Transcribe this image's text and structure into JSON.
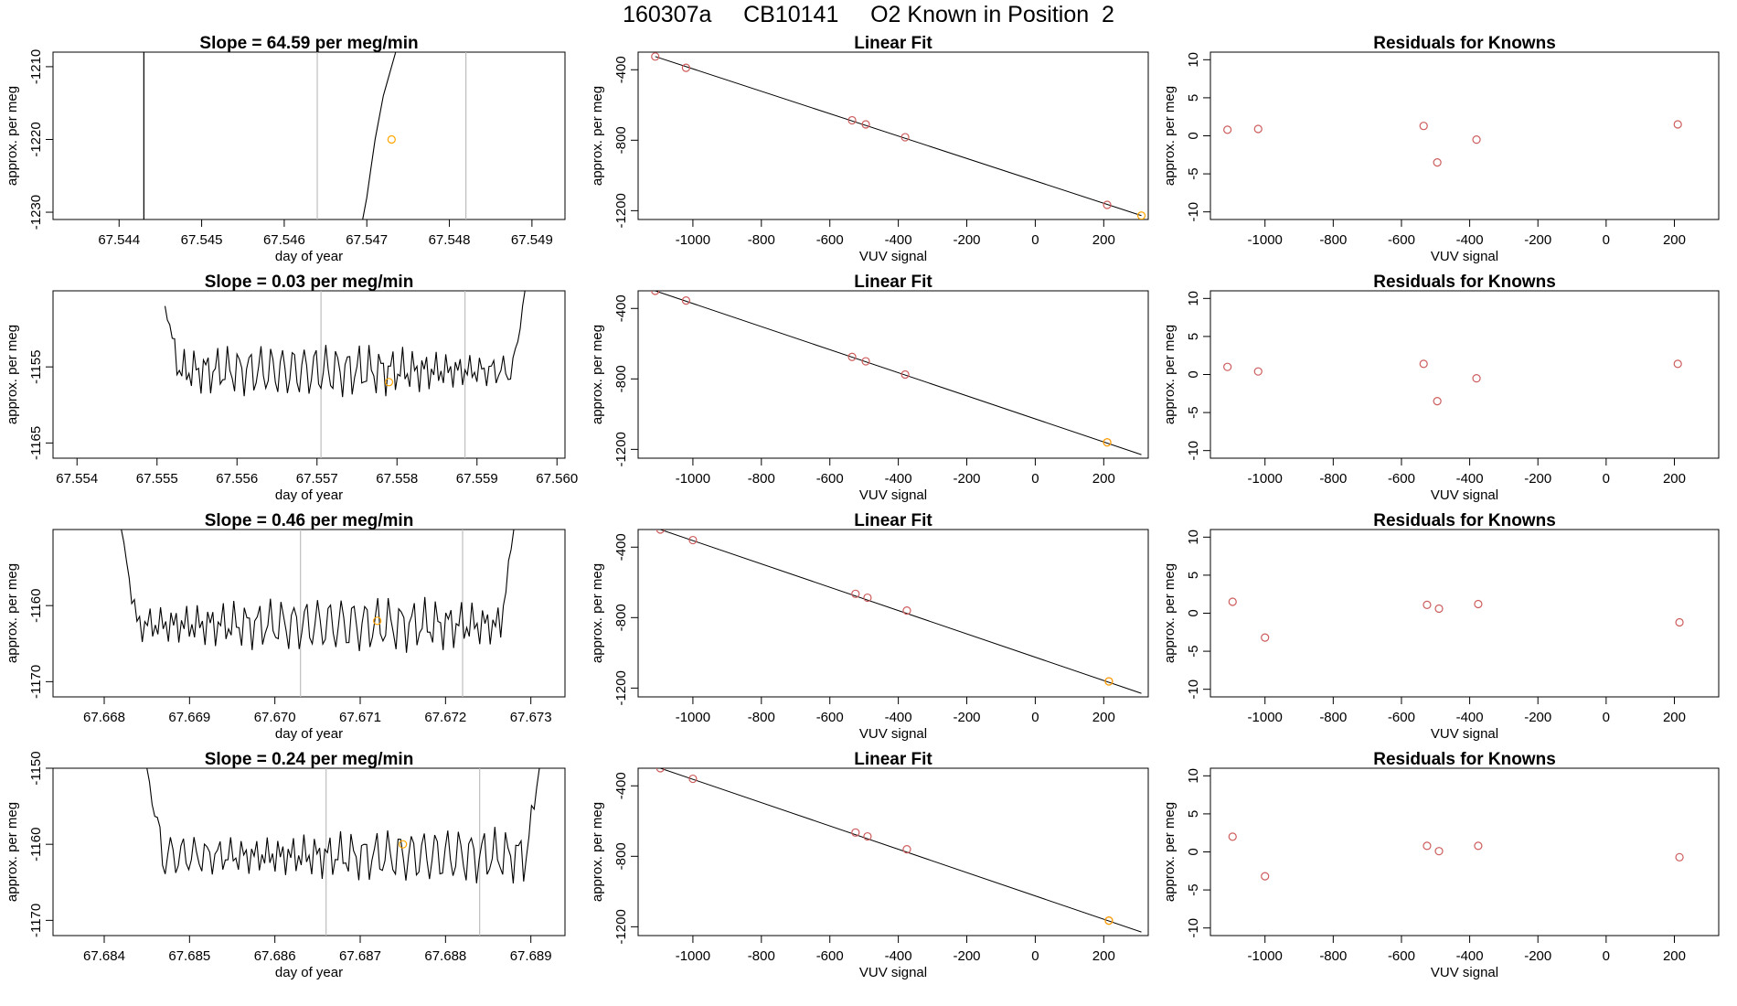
{
  "main_title": "160307a     CB10141     O2 Known in Position  2",
  "colors": {
    "line": "#000000",
    "grid": "#bebebe",
    "known_point": "#cd5c5c",
    "sample_point": "#ffa500"
  },
  "chart_data": [
    {
      "type": "line",
      "row": 1,
      "panel": "time_series",
      "title": "Slope =  64.59  per meg/min",
      "xlabel": "day of year",
      "ylabel": "approx. per meg",
      "xlim": [
        67.5432,
        67.5494
      ],
      "ylim": [
        -1231,
        -1208
      ],
      "x_ticks": [
        "67.544",
        "67.545",
        "67.546",
        "67.547",
        "67.548",
        "67.549"
      ],
      "y_ticks": [
        "-1210",
        "-1220",
        "-1230"
      ],
      "vlines": [
        {
          "x": 67.5443,
          "color": "#000000"
        },
        {
          "x": 67.5464,
          "color": "#bebebe"
        },
        {
          "x": 67.5482,
          "color": "#bebebe"
        }
      ],
      "trace": [
        [
          67.54695,
          -1231
        ],
        [
          67.547,
          -1228
        ],
        [
          67.54705,
          -1224
        ],
        [
          67.5471,
          -1220
        ],
        [
          67.54715,
          -1217
        ],
        [
          67.5472,
          -1214
        ],
        [
          67.54725,
          -1212
        ],
        [
          67.5473,
          -1210
        ],
        [
          67.54735,
          -1208
        ]
      ],
      "point": {
        "x": 67.5473,
        "y": -1220
      }
    },
    {
      "type": "scatter",
      "row": 1,
      "panel": "linear_fit",
      "title": "Linear Fit",
      "xlabel": "VUV signal",
      "ylabel": "approx. per meg",
      "xlim": [
        -1160,
        330
      ],
      "ylim": [
        -1250,
        -300
      ],
      "x_ticks": [
        "-1000",
        "-800",
        "-600",
        "-400",
        "-200",
        "0",
        "200"
      ],
      "y_ticks": [
        "-400",
        "-800",
        "-1200"
      ],
      "known_points": [
        [
          -1110,
          -325
        ],
        [
          -1020,
          -389
        ],
        [
          -535,
          -687
        ],
        [
          -495,
          -710
        ],
        [
          -380,
          -783
        ],
        [
          210,
          -1167
        ]
      ],
      "sample_point": [
        310,
        -1228
      ],
      "fit_line": [
        [
          -1110,
          -325
        ],
        [
          310,
          -1228
        ]
      ]
    },
    {
      "type": "scatter",
      "row": 1,
      "panel": "residuals",
      "title": "Residuals for Knowns",
      "xlabel": "VUV signal",
      "ylabel": "approx. per meg",
      "xlim": [
        -1160,
        330
      ],
      "ylim": [
        -11,
        11
      ],
      "x_ticks": [
        "-1000",
        "-800",
        "-600",
        "-400",
        "-200",
        "0",
        "200"
      ],
      "y_ticks": [
        "10",
        "5",
        "0",
        "-5",
        "-10"
      ],
      "points": [
        [
          -1110,
          0.8
        ],
        [
          -1020,
          0.9
        ],
        [
          -535,
          1.3
        ],
        [
          -495,
          -3.5
        ],
        [
          -380,
          -0.5
        ],
        [
          210,
          1.5
        ]
      ]
    },
    {
      "type": "line",
      "row": 2,
      "panel": "time_series",
      "title": "Slope =  0.03  per meg/min",
      "xlabel": "day of year",
      "ylabel": "approx. per meg",
      "xlim": [
        67.5537,
        67.5601
      ],
      "ylim": [
        -1167,
        -1145
      ],
      "x_ticks": [
        "67.554",
        "67.555",
        "67.556",
        "67.557",
        "67.558",
        "67.559",
        "67.560"
      ],
      "y_ticks": [
        "-1155",
        "-1165"
      ],
      "vlines": [
        {
          "x": 67.55705,
          "color": "#bebebe"
        },
        {
          "x": 67.55885,
          "color": "#bebebe"
        }
      ],
      "trace_range": [
        67.5551,
        67.5596
      ],
      "trace_level": -1155.5,
      "trace_amplitude": 2.3,
      "trace_ends": [
        -1147,
        -1145
      ],
      "point": {
        "x": 67.5579,
        "y": -1157
      }
    },
    {
      "type": "scatter",
      "row": 2,
      "panel": "linear_fit",
      "title": "Linear Fit",
      "xlabel": "VUV signal",
      "ylabel": "approx. per meg",
      "xlim": [
        -1160,
        330
      ],
      "ylim": [
        -1250,
        -300
      ],
      "x_ticks": [
        "-1000",
        "-800",
        "-600",
        "-400",
        "-200",
        "0",
        "200"
      ],
      "y_ticks": [
        "-400",
        "-800",
        "-1200"
      ],
      "known_points": [
        [
          -1110,
          -300
        ],
        [
          -1020,
          -355
        ],
        [
          -535,
          -675
        ],
        [
          -495,
          -700
        ],
        [
          -380,
          -775
        ],
        [
          210,
          -1160
        ]
      ],
      "sample_point": [
        210,
        -1160
      ],
      "fit_line": [
        [
          -1110,
          -300
        ],
        [
          310,
          -1230
        ]
      ]
    },
    {
      "type": "scatter",
      "row": 2,
      "panel": "residuals",
      "title": "Residuals for Knowns",
      "xlabel": "VUV signal",
      "ylabel": "approx. per meg",
      "xlim": [
        -1160,
        330
      ],
      "ylim": [
        -11,
        11
      ],
      "x_ticks": [
        "-1000",
        "-800",
        "-600",
        "-400",
        "-200",
        "0",
        "200"
      ],
      "y_ticks": [
        "10",
        "5",
        "0",
        "-5",
        "-10"
      ],
      "points": [
        [
          -1110,
          1.0
        ],
        [
          -1020,
          0.4
        ],
        [
          -535,
          1.4
        ],
        [
          -495,
          -3.5
        ],
        [
          -380,
          -0.5
        ],
        [
          210,
          1.4
        ]
      ]
    },
    {
      "type": "line",
      "row": 3,
      "panel": "time_series",
      "title": "Slope =  0.46  per meg/min",
      "xlabel": "day of year",
      "ylabel": "approx. per meg",
      "xlim": [
        67.6674,
        67.6734
      ],
      "ylim": [
        -1172,
        -1150
      ],
      "x_ticks": [
        "67.668",
        "67.669",
        "67.670",
        "67.671",
        "67.672",
        "67.673"
      ],
      "y_ticks": [
        "-1160",
        "-1170"
      ],
      "vlines": [
        {
          "x": 67.6703,
          "color": "#bebebe"
        },
        {
          "x": 67.6722,
          "color": "#bebebe"
        }
      ],
      "trace_range": [
        67.6682,
        67.6728
      ],
      "trace_level": -1162.5,
      "trace_amplitude": 2.4,
      "trace_ends": [
        -1150,
        -1150
      ],
      "point": {
        "x": 67.6712,
        "y": -1162
      }
    },
    {
      "type": "scatter",
      "row": 3,
      "panel": "linear_fit",
      "title": "Linear Fit",
      "xlabel": "VUV signal",
      "ylabel": "approx. per meg",
      "xlim": [
        -1160,
        330
      ],
      "ylim": [
        -1250,
        -300
      ],
      "x_ticks": [
        "-1000",
        "-800",
        "-600",
        "-400",
        "-200",
        "0",
        "200"
      ],
      "y_ticks": [
        "-400",
        "-800",
        "-1200"
      ],
      "known_points": [
        [
          -1095,
          -300
        ],
        [
          -1000,
          -360
        ],
        [
          -525,
          -665
        ],
        [
          -490,
          -687
        ],
        [
          -375,
          -760
        ],
        [
          215,
          -1162
        ]
      ],
      "sample_point": [
        215,
        -1162
      ],
      "fit_line": [
        [
          -1095,
          -300
        ],
        [
          310,
          -1230
        ]
      ]
    },
    {
      "type": "scatter",
      "row": 3,
      "panel": "residuals",
      "title": "Residuals for Knowns",
      "xlabel": "VUV signal",
      "ylabel": "approx. per meg",
      "xlim": [
        -1160,
        330
      ],
      "ylim": [
        -11,
        11
      ],
      "x_ticks": [
        "-1000",
        "-800",
        "-600",
        "-400",
        "-200",
        "0",
        "200"
      ],
      "y_ticks": [
        "10",
        "5",
        "0",
        "-5",
        "-10"
      ],
      "points": [
        [
          -1095,
          1.5
        ],
        [
          -1000,
          -3.2
        ],
        [
          -525,
          1.1
        ],
        [
          -490,
          0.6
        ],
        [
          -375,
          1.2
        ],
        [
          215,
          -1.2
        ]
      ]
    },
    {
      "type": "line",
      "row": 4,
      "panel": "time_series",
      "title": "Slope =  0.24  per meg/min",
      "xlabel": "day of year",
      "ylabel": "approx. per meg",
      "xlim": [
        67.6834,
        67.6894
      ],
      "ylim": [
        -1172,
        -1150
      ],
      "x_ticks": [
        "67.684",
        "67.685",
        "67.686",
        "67.687",
        "67.688",
        "67.689"
      ],
      "y_ticks": [
        "-1150",
        "-1160",
        "-1170"
      ],
      "vlines": [
        {
          "x": 67.6866,
          "color": "#bebebe"
        },
        {
          "x": 67.6884,
          "color": "#bebebe"
        }
      ],
      "trace_range": [
        67.6845,
        67.6891
      ],
      "trace_level": -1161.5,
      "trace_amplitude": 2.4,
      "trace_ends": [
        -1150,
        -1150
      ],
      "point": {
        "x": 67.6875,
        "y": -1160
      }
    },
    {
      "type": "scatter",
      "row": 4,
      "panel": "linear_fit",
      "title": "Linear Fit",
      "xlabel": "VUV signal",
      "ylabel": "approx. per meg",
      "xlim": [
        -1160,
        330
      ],
      "ylim": [
        -1250,
        -300
      ],
      "x_ticks": [
        "-1000",
        "-800",
        "-600",
        "-400",
        "-200",
        "0",
        "200"
      ],
      "y_ticks": [
        "-400",
        "-800",
        "-1200"
      ],
      "known_points": [
        [
          -1095,
          -300
        ],
        [
          -1000,
          -360
        ],
        [
          -525,
          -665
        ],
        [
          -490,
          -687
        ],
        [
          -375,
          -760
        ],
        [
          215,
          -1165
        ]
      ],
      "sample_point": [
        215,
        -1165
      ],
      "fit_line": [
        [
          -1095,
          -300
        ],
        [
          310,
          -1230
        ]
      ]
    },
    {
      "type": "scatter",
      "row": 4,
      "panel": "residuals",
      "title": "Residuals for Knowns",
      "xlabel": "VUV signal",
      "ylabel": "approx. per meg",
      "xlim": [
        -1160,
        330
      ],
      "ylim": [
        -11,
        11
      ],
      "x_ticks": [
        "-1000",
        "-800",
        "-600",
        "-400",
        "-200",
        "0",
        "200"
      ],
      "y_ticks": [
        "10",
        "5",
        "0",
        "-5",
        "-10"
      ],
      "points": [
        [
          -1095,
          2.0
        ],
        [
          -1000,
          -3.2
        ],
        [
          -525,
          0.8
        ],
        [
          -490,
          0.1
        ],
        [
          -375,
          0.8
        ],
        [
          215,
          -0.7
        ]
      ]
    }
  ]
}
